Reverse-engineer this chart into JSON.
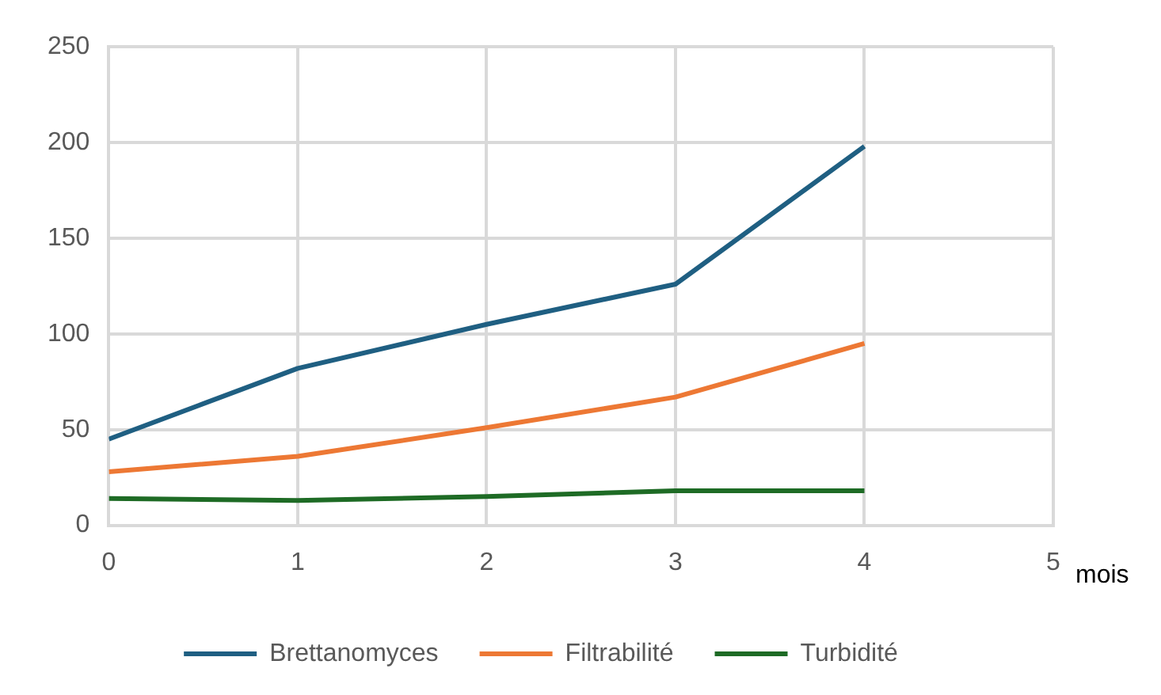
{
  "chart_data": {
    "type": "line",
    "xlabel": "mois",
    "x": [
      0,
      1,
      2,
      3,
      4
    ],
    "xlim": [
      0,
      5
    ],
    "xticks": [
      0,
      1,
      2,
      3,
      4,
      5
    ],
    "ylim": [
      0,
      250
    ],
    "yticks": [
      0,
      50,
      100,
      150,
      200,
      250
    ],
    "grid": true,
    "legend": "bottom",
    "marker": "none",
    "line_style": "solid",
    "series": [
      {
        "name": "Brettanomyces",
        "color": "#1f5f82",
        "values": [
          45,
          82,
          105,
          126,
          198
        ]
      },
      {
        "name": "Filtrabilité",
        "color": "#ed7834",
        "values": [
          28,
          36,
          51,
          67,
          95
        ]
      },
      {
        "name": "Turbidité",
        "color": "#1e6b25",
        "values": [
          14,
          13,
          15,
          18,
          18
        ]
      }
    ]
  }
}
